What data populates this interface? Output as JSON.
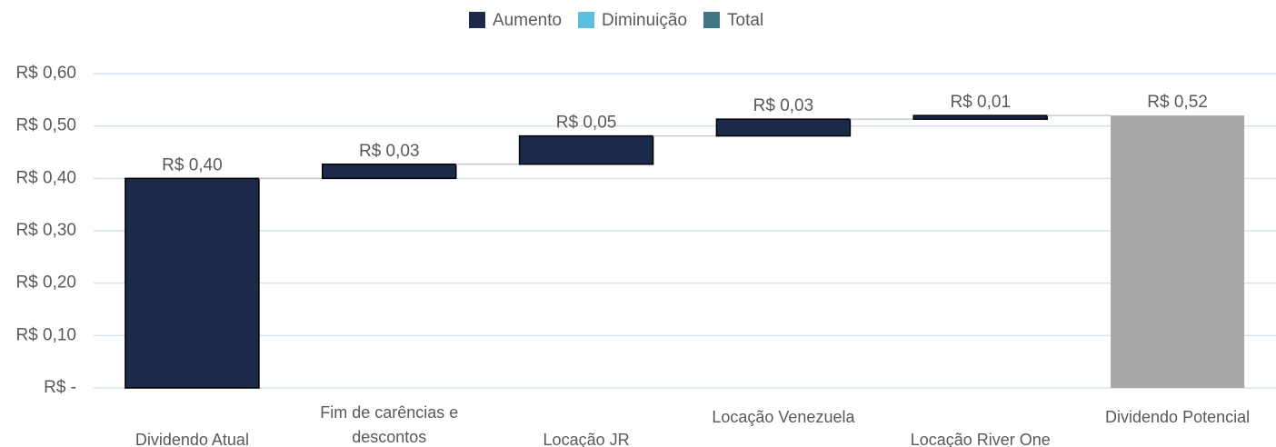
{
  "chart_data": {
    "type": "waterfall",
    "series": [
      {
        "name": "Aumento",
        "color": "#1b2a4a"
      },
      {
        "name": "Diminuição",
        "color": "#5bc0de"
      },
      {
        "name": "Total",
        "color": "#3e7580"
      }
    ],
    "total_bar_color": "#a6a6a6",
    "categories": [
      "Dividendo Atual",
      "Fim de carências e descontos",
      "Locação JR",
      "Locação Venezuela",
      "Locação River One",
      "Dividendo Potencial"
    ],
    "values": [
      0.4,
      0.027,
      0.054,
      0.032,
      0.007,
      0.52
    ],
    "value_labels": [
      "R$ 0,40",
      "R$ 0,03",
      "R$ 0,05",
      "R$ 0,03",
      "R$ 0,01",
      "R$ 0,52"
    ],
    "totals": [
      false,
      false,
      false,
      false,
      false,
      true
    ],
    "ylim": [
      0,
      0.6
    ],
    "yticks": [
      {
        "value": 0,
        "label": "R$ -"
      },
      {
        "value": 0.1,
        "label": "R$ 0,10"
      },
      {
        "value": 0.2,
        "label": "R$ 0,20"
      },
      {
        "value": 0.3,
        "label": "R$ 0,30"
      },
      {
        "value": 0.4,
        "label": "R$ 0,40"
      },
      {
        "value": 0.5,
        "label": "R$ 0,50"
      },
      {
        "value": 0.6,
        "label": "R$ 0,60"
      }
    ],
    "grid": true
  }
}
